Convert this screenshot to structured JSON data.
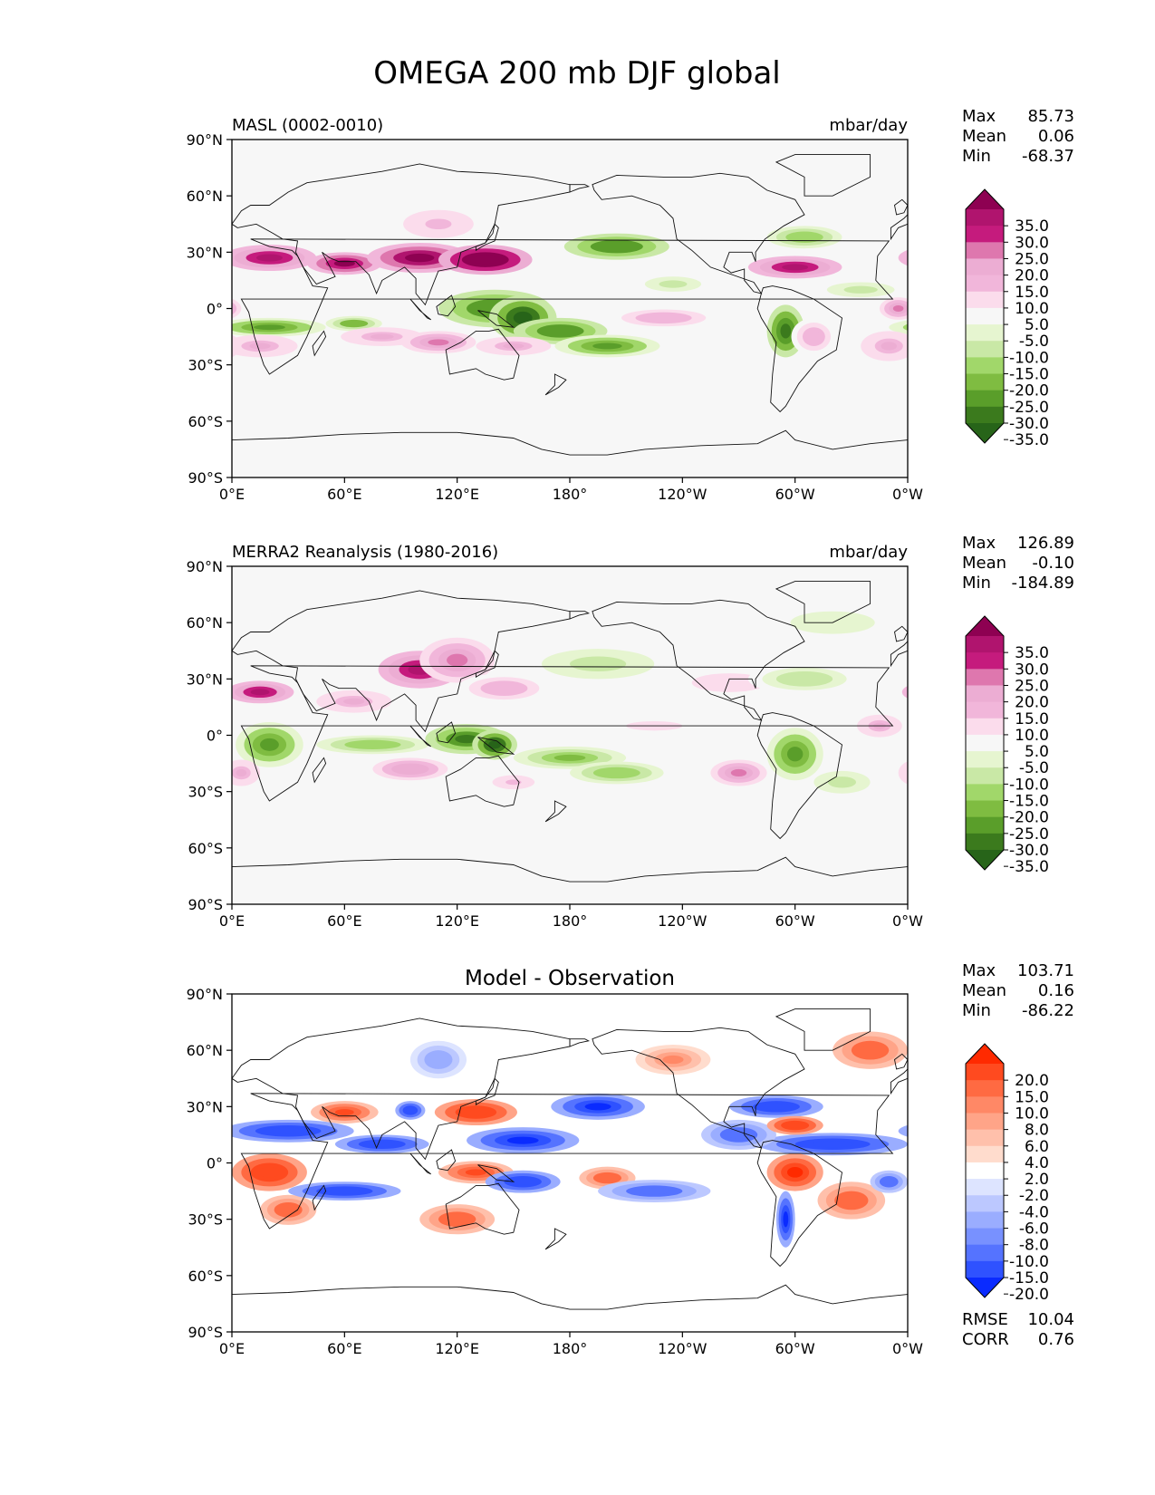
{
  "figure": {
    "title": "OMEGA 200 mb DJF global"
  },
  "chart_data": [
    {
      "type": "heatmap",
      "panel_id": "model",
      "title_left": "MASL (0002-0010)",
      "title_center": "",
      "units": "mbar/day",
      "stats": [
        {
          "label": "Max",
          "value": "85.73"
        },
        {
          "label": "Mean",
          "value": "0.06"
        },
        {
          "label": "Min",
          "value": "-68.37"
        }
      ],
      "colorbar": {
        "levels": [
          "35.0",
          "30.0",
          "25.0",
          "20.0",
          "15.0",
          "10.0",
          "5.0",
          "-5.0",
          "-10.0",
          "-15.0",
          "-20.0",
          "-25.0",
          "-30.0",
          "-35.0"
        ],
        "colors": [
          "#8e0152",
          "#b0146e",
          "#c51b7d",
          "#de77ae",
          "#ecadd3",
          "#f1b6da",
          "#fbdcec",
          "#f7f7f7",
          "#e6f5d0",
          "#c9e8a6",
          "#a1d76a",
          "#7fbc41",
          "#5a9e2a",
          "#3b7a1d",
          "#276419"
        ],
        "extend": "both"
      },
      "xticks": [
        "0°E",
        "60°E",
        "120°E",
        "180°",
        "120°W",
        "60°W",
        "0°W"
      ],
      "yticks": [
        "90°N",
        "60°N",
        "30°N",
        "0°",
        "30°S",
        "60°S",
        "90°S"
      ],
      "xlim": [
        0,
        360
      ],
      "ylim": [
        -90,
        90
      ],
      "features": [
        {
          "lon": 20,
          "lat": 27,
          "value": 30,
          "rx": 25,
          "ry": 7
        },
        {
          "lon": 60,
          "lat": 24,
          "value": 35,
          "rx": 20,
          "ry": 6
        },
        {
          "lon": 100,
          "lat": 27,
          "value": 40,
          "rx": 28,
          "ry": 8
        },
        {
          "lon": 135,
          "lat": 26,
          "value": 45,
          "rx": 25,
          "ry": 8
        },
        {
          "lon": 110,
          "lat": 45,
          "value": 10,
          "rx": 25,
          "ry": 10
        },
        {
          "lon": 205,
          "lat": 33,
          "value": -30,
          "rx": 28,
          "ry": 7
        },
        {
          "lon": 235,
          "lat": 13,
          "value": -15,
          "rx": 15,
          "ry": 4
        },
        {
          "lon": 300,
          "lat": 22,
          "value": 30,
          "rx": 25,
          "ry": 6
        },
        {
          "lon": 305,
          "lat": 38,
          "value": -20,
          "rx": 20,
          "ry": 6
        },
        {
          "lon": 335,
          "lat": 10,
          "value": -15,
          "rx": 18,
          "ry": 4
        },
        {
          "lon": 140,
          "lat": 0,
          "value": -30,
          "rx": 30,
          "ry": 10
        },
        {
          "lon": 155,
          "lat": -5,
          "value": -40,
          "rx": 18,
          "ry": 12
        },
        {
          "lon": 175,
          "lat": -12,
          "value": -30,
          "rx": 25,
          "ry": 7
        },
        {
          "lon": 200,
          "lat": -20,
          "value": -28,
          "rx": 28,
          "ry": 6
        },
        {
          "lon": 230,
          "lat": -5,
          "value": 12,
          "rx": 30,
          "ry": 6
        },
        {
          "lon": 20,
          "lat": -10,
          "value": -28,
          "rx": 30,
          "ry": 5
        },
        {
          "lon": 65,
          "lat": -8,
          "value": -25,
          "rx": 15,
          "ry": 4
        },
        {
          "lon": 15,
          "lat": -20,
          "value": 15,
          "rx": 20,
          "ry": 6
        },
        {
          "lon": 80,
          "lat": -15,
          "value": 15,
          "rx": 22,
          "ry": 5
        },
        {
          "lon": 110,
          "lat": -18,
          "value": 20,
          "rx": 20,
          "ry": 6
        },
        {
          "lon": 150,
          "lat": -20,
          "value": 15,
          "rx": 20,
          "ry": 5
        },
        {
          "lon": 295,
          "lat": -12,
          "value": -35,
          "rx": 10,
          "ry": 14
        },
        {
          "lon": 310,
          "lat": -15,
          "value": 12,
          "rx": 12,
          "ry": 10
        },
        {
          "lon": 355,
          "lat": 0,
          "value": 20,
          "rx": 10,
          "ry": 6
        },
        {
          "lon": 350,
          "lat": -20,
          "value": 15,
          "rx": 15,
          "ry": 8
        }
      ]
    },
    {
      "type": "heatmap",
      "panel_id": "obs",
      "title_left": "MERRA2 Reanalysis (1980-2016)",
      "title_center": "",
      "units": "mbar/day",
      "stats": [
        {
          "label": "Max",
          "value": "126.89"
        },
        {
          "label": "Mean",
          "value": "-0.10"
        },
        {
          "label": "Min",
          "value": "-184.89"
        }
      ],
      "colorbar": {
        "levels": [
          "35.0",
          "30.0",
          "25.0",
          "20.0",
          "15.0",
          "10.0",
          "5.0",
          "-5.0",
          "-10.0",
          "-15.0",
          "-20.0",
          "-25.0",
          "-30.0",
          "-35.0"
        ],
        "colors": [
          "#8e0152",
          "#b0146e",
          "#c51b7d",
          "#de77ae",
          "#ecadd3",
          "#f1b6da",
          "#fbdcec",
          "#f7f7f7",
          "#e6f5d0",
          "#c9e8a6",
          "#a1d76a",
          "#7fbc41",
          "#5a9e2a",
          "#3b7a1d",
          "#276419"
        ],
        "extend": "both"
      },
      "xticks": [
        "0°E",
        "60°E",
        "120°E",
        "180°",
        "120°W",
        "60°W",
        "0°W"
      ],
      "yticks": [
        "90°N",
        "60°N",
        "30°N",
        "0°",
        "30°S",
        "60°S",
        "90°S"
      ],
      "xlim": [
        0,
        360
      ],
      "ylim": [
        -90,
        90
      ],
      "features": [
        {
          "lon": 15,
          "lat": 23,
          "value": 30,
          "rx": 18,
          "ry": 6
        },
        {
          "lon": 65,
          "lat": 18,
          "value": 15,
          "rx": 20,
          "ry": 6
        },
        {
          "lon": 100,
          "lat": 35,
          "value": 30,
          "rx": 22,
          "ry": 10
        },
        {
          "lon": 120,
          "lat": 40,
          "value": 20,
          "rx": 20,
          "ry": 12
        },
        {
          "lon": 145,
          "lat": 25,
          "value": 12,
          "rx": 25,
          "ry": 8
        },
        {
          "lon": 195,
          "lat": 38,
          "value": -15,
          "rx": 30,
          "ry": 8
        },
        {
          "lon": 265,
          "lat": 28,
          "value": 8,
          "rx": 40,
          "ry": 10
        },
        {
          "lon": 305,
          "lat": 30,
          "value": -12,
          "rx": 30,
          "ry": 8
        },
        {
          "lon": 320,
          "lat": 60,
          "value": -10,
          "rx": 30,
          "ry": 8
        },
        {
          "lon": 20,
          "lat": -5,
          "value": -28,
          "rx": 18,
          "ry": 12
        },
        {
          "lon": 75,
          "lat": -5,
          "value": -18,
          "rx": 30,
          "ry": 5
        },
        {
          "lon": 125,
          "lat": -2,
          "value": -32,
          "rx": 22,
          "ry": 8
        },
        {
          "lon": 140,
          "lat": -5,
          "value": -38,
          "rx": 12,
          "ry": 8
        },
        {
          "lon": 180,
          "lat": -12,
          "value": -22,
          "rx": 30,
          "ry": 6
        },
        {
          "lon": 205,
          "lat": -20,
          "value": -18,
          "rx": 25,
          "ry": 6
        },
        {
          "lon": 300,
          "lat": -10,
          "value": -28,
          "rx": 15,
          "ry": 14
        },
        {
          "lon": 325,
          "lat": -25,
          "value": -15,
          "rx": 15,
          "ry": 6
        },
        {
          "lon": 270,
          "lat": -20,
          "value": 20,
          "rx": 15,
          "ry": 7
        },
        {
          "lon": 95,
          "lat": -18,
          "value": 18,
          "rx": 20,
          "ry": 6
        },
        {
          "lon": 5,
          "lat": -20,
          "value": 15,
          "rx": 10,
          "ry": 7
        },
        {
          "lon": 225,
          "lat": 5,
          "value": 8,
          "rx": 30,
          "ry": 5
        },
        {
          "lon": 345,
          "lat": 5,
          "value": 15,
          "rx": 12,
          "ry": 6
        },
        {
          "lon": 150,
          "lat": -25,
          "value": 10,
          "rx": 15,
          "ry": 5
        }
      ]
    },
    {
      "type": "heatmap",
      "panel_id": "diff",
      "title_left": "",
      "title_center": "Model - Observation",
      "units": "",
      "stats": [
        {
          "label": "Max",
          "value": "103.71"
        },
        {
          "label": "Mean",
          "value": "0.16"
        },
        {
          "label": "Min",
          "value": "-86.22"
        }
      ],
      "extra_stats": [
        {
          "label": "RMSE",
          "value": "10.04"
        },
        {
          "label": "CORR",
          "value": "0.76"
        }
      ],
      "colorbar": {
        "levels": [
          "20.0",
          "15.0",
          "10.0",
          "8.0",
          "6.0",
          "4.0",
          "2.0",
          "-2.0",
          "-4.0",
          "-6.0",
          "-8.0",
          "-10.0",
          "-15.0",
          "-20.0"
        ],
        "colors": [
          "#ff2a00",
          "#ff4a1f",
          "#ff6a42",
          "#ff8866",
          "#ffa488",
          "#ffc0ab",
          "#ffdccd",
          "#ffffff",
          "#dde4ff",
          "#bcc8ff",
          "#9aadff",
          "#7891ff",
          "#5573ff",
          "#2f52ff",
          "#0a2bff"
        ],
        "extend": "both"
      },
      "xticks": [
        "0°E",
        "60°E",
        "120°E",
        "180°",
        "120°W",
        "60°W",
        "0°W"
      ],
      "yticks": [
        "90°N",
        "60°N",
        "30°N",
        "0°",
        "30°S",
        "60°S",
        "90°S"
      ],
      "xlim": [
        0,
        360
      ],
      "ylim": [
        -90,
        90
      ],
      "features": [
        {
          "lon": 30,
          "lat": 17,
          "value": -18,
          "rx": 35,
          "ry": 6
        },
        {
          "lon": 80,
          "lat": 10,
          "value": -18,
          "rx": 25,
          "ry": 5
        },
        {
          "lon": 155,
          "lat": 12,
          "value": -22,
          "rx": 30,
          "ry": 7
        },
        {
          "lon": 320,
          "lat": 10,
          "value": -20,
          "rx": 40,
          "ry": 6
        },
        {
          "lon": 270,
          "lat": 15,
          "value": -12,
          "rx": 20,
          "ry": 8
        },
        {
          "lon": 195,
          "lat": 30,
          "value": -22,
          "rx": 25,
          "ry": 7
        },
        {
          "lon": 290,
          "lat": 30,
          "value": -18,
          "rx": 25,
          "ry": 6
        },
        {
          "lon": 95,
          "lat": 28,
          "value": -20,
          "rx": 8,
          "ry": 5
        },
        {
          "lon": 130,
          "lat": 27,
          "value": 18,
          "rx": 22,
          "ry": 7
        },
        {
          "lon": 60,
          "lat": 27,
          "value": 15,
          "rx": 18,
          "ry": 6
        },
        {
          "lon": 300,
          "lat": 20,
          "value": 18,
          "rx": 15,
          "ry": 5
        },
        {
          "lon": 340,
          "lat": 60,
          "value": 12,
          "rx": 20,
          "ry": 10
        },
        {
          "lon": 235,
          "lat": 55,
          "value": 8,
          "rx": 20,
          "ry": 8
        },
        {
          "lon": 20,
          "lat": -5,
          "value": 18,
          "rx": 20,
          "ry": 10
        },
        {
          "lon": 30,
          "lat": -25,
          "value": 12,
          "rx": 15,
          "ry": 8
        },
        {
          "lon": 60,
          "lat": -15,
          "value": -18,
          "rx": 30,
          "ry": 5
        },
        {
          "lon": 130,
          "lat": -5,
          "value": 15,
          "rx": 20,
          "ry": 6
        },
        {
          "lon": 155,
          "lat": -10,
          "value": -20,
          "rx": 20,
          "ry": 6
        },
        {
          "lon": 200,
          "lat": -8,
          "value": 12,
          "rx": 15,
          "ry": 6
        },
        {
          "lon": 225,
          "lat": -15,
          "value": -12,
          "rx": 30,
          "ry": 6
        },
        {
          "lon": 300,
          "lat": -5,
          "value": 20,
          "rx": 15,
          "ry": 10
        },
        {
          "lon": 330,
          "lat": -20,
          "value": 12,
          "rx": 18,
          "ry": 10
        },
        {
          "lon": 295,
          "lat": -30,
          "value": -22,
          "rx": 5,
          "ry": 15
        },
        {
          "lon": 350,
          "lat": -10,
          "value": -12,
          "rx": 10,
          "ry": 6
        },
        {
          "lon": 120,
          "lat": -30,
          "value": 12,
          "rx": 20,
          "ry": 8
        },
        {
          "lon": 110,
          "lat": 55,
          "value": -8,
          "rx": 15,
          "ry": 10
        }
      ]
    }
  ]
}
